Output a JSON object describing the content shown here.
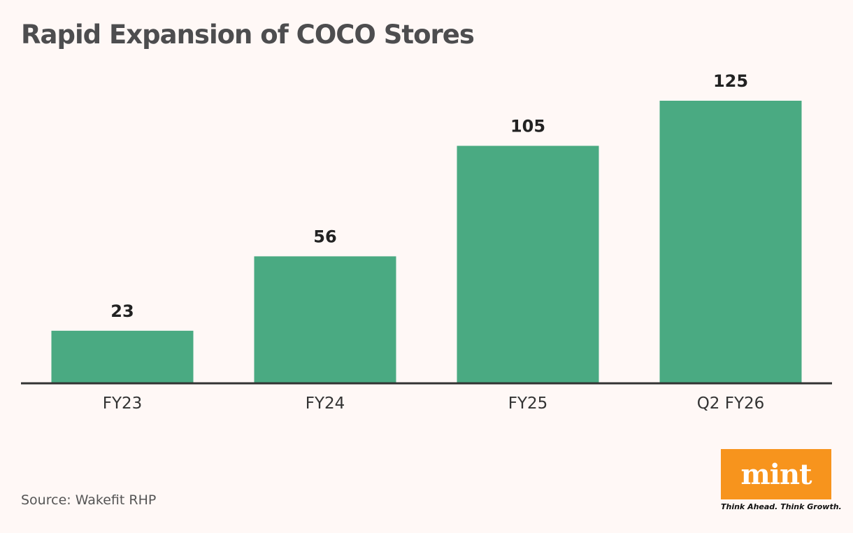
{
  "title": "Rapid Expansion of COCO Stores",
  "source": "Source: Wakefit RHP",
  "logo": {
    "text": "mint",
    "tagline": "Think Ahead. Think Growth.",
    "color": "#f7941d"
  },
  "colors": {
    "bar": "#4aaa82",
    "axis": "#333333",
    "background": "#fff8f6"
  },
  "chart_data": {
    "type": "bar",
    "title": "Rapid Expansion of COCO Stores",
    "categories": [
      "FY23",
      "FY24",
      "FY25",
      "Q2 FY26"
    ],
    "values": [
      23,
      56,
      105,
      125
    ],
    "xlabel": "",
    "ylabel": "",
    "ylim": [
      0,
      125
    ],
    "grid": false,
    "legend": "none",
    "data_labels": true
  }
}
